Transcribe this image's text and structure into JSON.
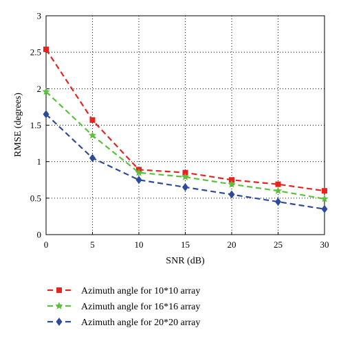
{
  "chart_data": {
    "type": "line",
    "title": "",
    "xlabel": "SNR (dB)",
    "ylabel": "RMSE (degrees)",
    "x": [
      0,
      5,
      10,
      15,
      20,
      25,
      30
    ],
    "xlim": [
      0,
      30
    ],
    "ylim": [
      0,
      3
    ],
    "xticks": [
      "0",
      "5",
      "10",
      "15",
      "20",
      "25",
      "30"
    ],
    "yticks": [
      "0",
      "0.5",
      "1",
      "1.5",
      "2",
      "2.5",
      "3"
    ],
    "grid": true,
    "legend_position": "below",
    "series": [
      {
        "name": "Azimuth angle for 10*10 array",
        "values": [
          2.54,
          1.57,
          0.89,
          0.85,
          0.75,
          0.69,
          0.6
        ],
        "color": "#e8231f",
        "marker": "square"
      },
      {
        "name": "Azimuth angle for 16*16 array",
        "values": [
          1.96,
          1.36,
          0.85,
          0.79,
          0.69,
          0.6,
          0.49
        ],
        "color": "#5cc13a",
        "marker": "star"
      },
      {
        "name": "Azimuth angle for 20*20 array",
        "values": [
          1.65,
          1.05,
          0.75,
          0.65,
          0.55,
          0.45,
          0.35
        ],
        "color": "#2e4a9a",
        "marker": "diamond"
      }
    ]
  }
}
